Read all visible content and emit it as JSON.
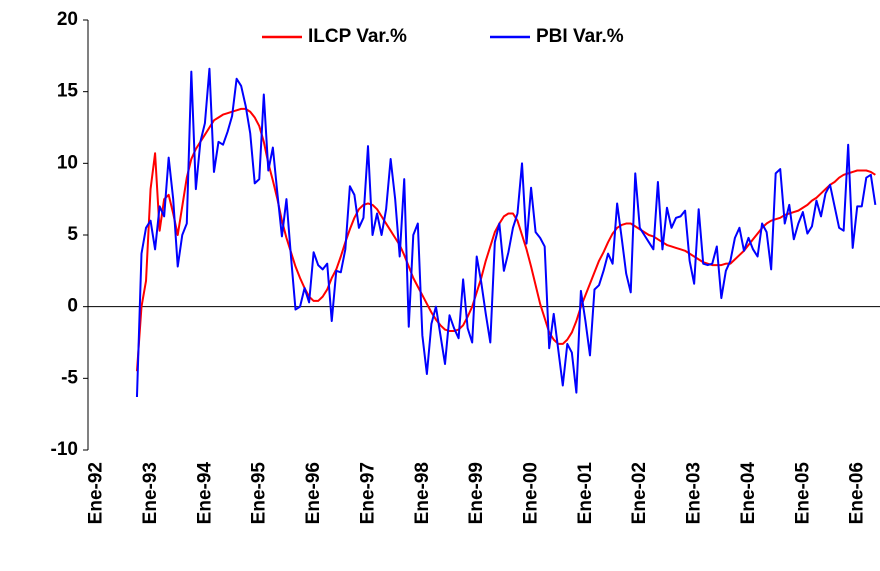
{
  "chart_data": {
    "type": "line",
    "categories": [
      "Ene-92",
      null,
      null,
      null,
      null,
      null,
      null,
      null,
      null,
      null,
      null,
      null,
      "Ene-93",
      null,
      null,
      null,
      null,
      null,
      null,
      null,
      null,
      null,
      null,
      null,
      "Ene-94",
      null,
      null,
      null,
      null,
      null,
      null,
      null,
      null,
      null,
      null,
      null,
      "Ene-95",
      null,
      null,
      null,
      null,
      null,
      null,
      null,
      null,
      null,
      null,
      null,
      "Ene-96",
      null,
      null,
      null,
      null,
      null,
      null,
      null,
      null,
      null,
      null,
      null,
      "Ene-97",
      null,
      null,
      null,
      null,
      null,
      null,
      null,
      null,
      null,
      null,
      null,
      "Ene-98",
      null,
      null,
      null,
      null,
      null,
      null,
      null,
      null,
      null,
      null,
      null,
      "Ene-99",
      null,
      null,
      null,
      null,
      null,
      null,
      null,
      null,
      null,
      null,
      null,
      "Ene-00",
      null,
      null,
      null,
      null,
      null,
      null,
      null,
      null,
      null,
      null,
      null,
      "Ene-01",
      null,
      null,
      null,
      null,
      null,
      null,
      null,
      null,
      null,
      null,
      null,
      "Ene-02",
      null,
      null,
      null,
      null,
      null,
      null,
      null,
      null,
      null,
      null,
      null,
      "Ene-03",
      null,
      null,
      null,
      null,
      null,
      null,
      null,
      null,
      null,
      null,
      null,
      "Ene-04",
      null,
      null,
      null,
      null,
      null,
      null,
      null,
      null,
      null,
      null,
      null,
      "Ene-05",
      null,
      null,
      null,
      null,
      null,
      null,
      null,
      null,
      null,
      null,
      null,
      "Ene-06",
      null,
      null,
      null,
      null,
      null,
      null,
      null
    ],
    "series": [
      {
        "name": "ILCP Var.%",
        "color": "#ff0000",
        "values": [
          null,
          null,
          null,
          null,
          null,
          null,
          null,
          null,
          null,
          null,
          null,
          null,
          -4.5,
          0,
          1.8,
          8.2,
          10.7,
          5.3,
          7.5,
          7.8,
          6.5,
          5,
          7,
          9,
          10.3,
          11,
          11.5,
          12,
          12.5,
          13,
          13.2,
          13.4,
          13.5,
          13.6,
          13.7,
          13.8,
          13.8,
          13.6,
          13.2,
          12.6,
          11.5,
          10,
          8.8,
          7.5,
          6,
          4.8,
          3.8,
          2.8,
          2,
          1.3,
          0.7,
          0.4,
          0.4,
          0.7,
          1.2,
          2,
          2.6,
          3.5,
          4.5,
          5.4,
          6.2,
          6.8,
          7.1,
          7.2,
          7.1,
          6.8,
          6.3,
          5.8,
          5.3,
          4.8,
          4.3,
          3.6,
          2.8,
          2,
          1.4,
          0.8,
          0.2,
          -0.4,
          -0.9,
          -1.3,
          -1.6,
          -1.7,
          -1.7,
          -1.6,
          -1.3,
          -0.7,
          0,
          1,
          2,
          3.2,
          4.2,
          5.2,
          5.8,
          6.3,
          6.5,
          6.5,
          6,
          5,
          4,
          2.8,
          1.5,
          0.2,
          -0.8,
          -1.8,
          -2.3,
          -2.6,
          -2.6,
          -2.3,
          -1.8,
          -1,
          0,
          0.8,
          1.6,
          2.4,
          3.2,
          3.8,
          4.5,
          5.1,
          5.5,
          5.7,
          5.8,
          5.8,
          5.6,
          5.4,
          5.2,
          5,
          4.9,
          4.7,
          4.5,
          4.3,
          4.2,
          4.1,
          4,
          3.9,
          3.7,
          3.5,
          3.3,
          3.1,
          3,
          2.9,
          2.9,
          2.9,
          3,
          3,
          3.3,
          3.6,
          3.9,
          4.3,
          4.7,
          5.1,
          5.5,
          5.8,
          6,
          6.1,
          6.2,
          6.4,
          6.5,
          6.6,
          6.7,
          6.9,
          7.1,
          7.4,
          7.6,
          7.9,
          8.2,
          8.5,
          8.7,
          9,
          9.2,
          9.3,
          9.4,
          9.5,
          9.5,
          9.5,
          9.4,
          9.2
        ]
      },
      {
        "name": "PBI Var.%",
        "color": "#0000ff",
        "values": [
          null,
          null,
          null,
          null,
          null,
          null,
          null,
          null,
          null,
          null,
          null,
          null,
          -6.3,
          3.7,
          5.5,
          6,
          4,
          7,
          6.3,
          10.4,
          7.5,
          2.8,
          5,
          5.8,
          16.4,
          8.2,
          11.5,
          12.8,
          16.6,
          9.4,
          11.5,
          11.3,
          12.2,
          13.3,
          15.9,
          15.4,
          14,
          12.1,
          8.6,
          8.9,
          14.8,
          9.5,
          11.1,
          7.9,
          4.9,
          7.5,
          3.5,
          -0.2,
          0,
          1.3,
          0.3,
          3.8,
          2.9,
          2.6,
          3,
          -1,
          2.5,
          2.4,
          4,
          8.4,
          7.8,
          5.5,
          6.2,
          11.2,
          5,
          6.5,
          5,
          6.8,
          10.3,
          7.5,
          3.5,
          8.9,
          -1.4,
          5,
          5.8,
          -2,
          -4.7,
          -1.2,
          0,
          -2,
          -4,
          -0.6,
          -1.5,
          -2.2,
          1.9,
          -1.5,
          -2.5,
          3.5,
          1.7,
          -0.5,
          -2.5,
          4.5,
          5.8,
          2.5,
          3.8,
          5.5,
          6.5,
          10,
          4.4,
          8.3,
          5.2,
          4.8,
          4.2,
          -2.9,
          -0.5,
          -3,
          -5.5,
          -2.6,
          -3.2,
          -6,
          1.1,
          -1,
          -3.4,
          1.2,
          1.5,
          2.5,
          3.7,
          3,
          7.2,
          4.8,
          2.3,
          1,
          9.3,
          5.5,
          5,
          4.5,
          4,
          8.7,
          4,
          6.9,
          5.5,
          6.2,
          6.3,
          6.7,
          3.2,
          1.6,
          6.8,
          3,
          2.9,
          3,
          4.2,
          0.6,
          2.5,
          3.2,
          4.8,
          5.5,
          3.9,
          4.8,
          4,
          3.5,
          5.8,
          5.2,
          2.6,
          9.3,
          9.6,
          5.8,
          7.1,
          4.7,
          5.8,
          6.6,
          5.1,
          5.6,
          7.4,
          6.3,
          7.9,
          8.5,
          7,
          5.5,
          5.3,
          11.3,
          4.1,
          7,
          7,
          9,
          9.2,
          7.1
        ]
      }
    ],
    "ylim": [
      -10,
      20
    ],
    "yticks": [
      -10,
      -5,
      0,
      5,
      10,
      15,
      20
    ]
  }
}
